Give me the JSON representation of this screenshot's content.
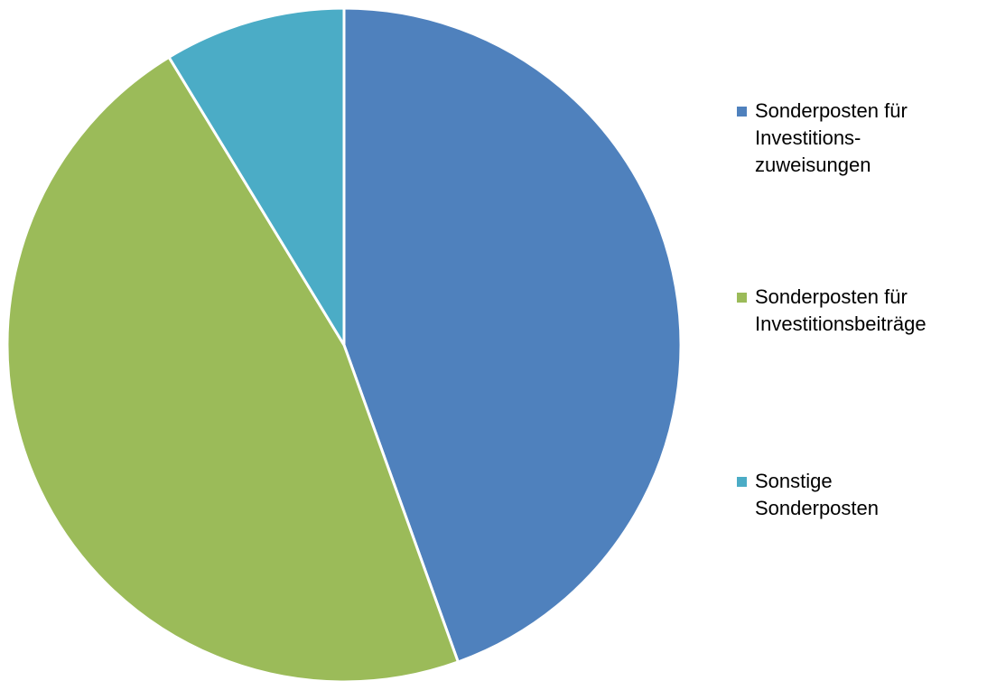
{
  "chart_data": {
    "type": "pie",
    "title": "",
    "start_angle_deg": 0,
    "direction": "clockwise",
    "slices": [
      {
        "label": "Sonderposten für\nInvestitions-\nzuweisungen",
        "value": 44.5,
        "color": "#4F81BD"
      },
      {
        "label": "Sonderposten für\nInvestitionsbeiträge",
        "value": 46.8,
        "color": "#9BBB59"
      },
      {
        "label": "Sonstige\nSonderposten",
        "value": 8.7,
        "color": "#4BACC6"
      }
    ],
    "legend_position": "right"
  }
}
